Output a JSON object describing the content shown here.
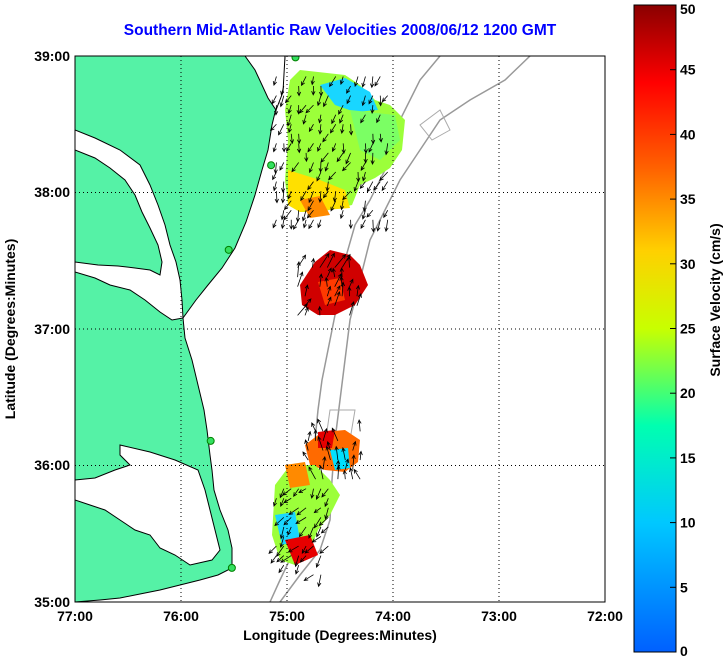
{
  "title": "Southern Mid-Atlantic Raw Velocities 2008/06/12 1200 GMT",
  "map": {
    "xlabel": "Longitude (Degrees:Minutes)",
    "ylabel": "Latitude (Degrees:Minutes)",
    "x_ticks": [
      "77:00",
      "76:00",
      "75:00",
      "74:00",
      "73:00",
      "72:00"
    ],
    "y_ticks": [
      "39:00",
      "38:00",
      "37:00",
      "36:00",
      "35:00"
    ],
    "lon_range": [
      -77,
      -72
    ],
    "lat_range": [
      35,
      39
    ],
    "land_color": "#55f2a6",
    "grid": true
  },
  "colorbar": {
    "label": "Surface Velocity (cm/s)",
    "ticks": [
      "50",
      "45",
      "40",
      "35",
      "30",
      "25",
      "20",
      "15",
      "10",
      "5",
      "0"
    ],
    "min": 0,
    "max": 50
  },
  "stations": [
    {
      "lon": -74.92,
      "lat": 38.99
    },
    {
      "lon": -75.15,
      "lat": 38.2
    },
    {
      "lon": -75.55,
      "lat": 37.58
    },
    {
      "lon": -75.72,
      "lat": 36.18
    },
    {
      "lon": -75.52,
      "lat": 35.25
    }
  ],
  "velocity_patches": [
    {
      "region": "delmarva-north",
      "lon": [
        -75.1,
        -74.0
      ],
      "lat": [
        37.8,
        38.9
      ],
      "speed": 20
    },
    {
      "region": "virginia-shelf-break",
      "lon": [
        -74.9,
        -74.3
      ],
      "lat": [
        37.1,
        37.5
      ],
      "speed": 45
    },
    {
      "region": "outer-banks-north",
      "lon": [
        -74.8,
        -74.3
      ],
      "lat": [
        35.9,
        36.3
      ],
      "speed": 35
    },
    {
      "region": "outer-banks-south",
      "lon": [
        -75.1,
        -74.6
      ],
      "lat": [
        35.2,
        35.9
      ],
      "speed": 22
    }
  ]
}
